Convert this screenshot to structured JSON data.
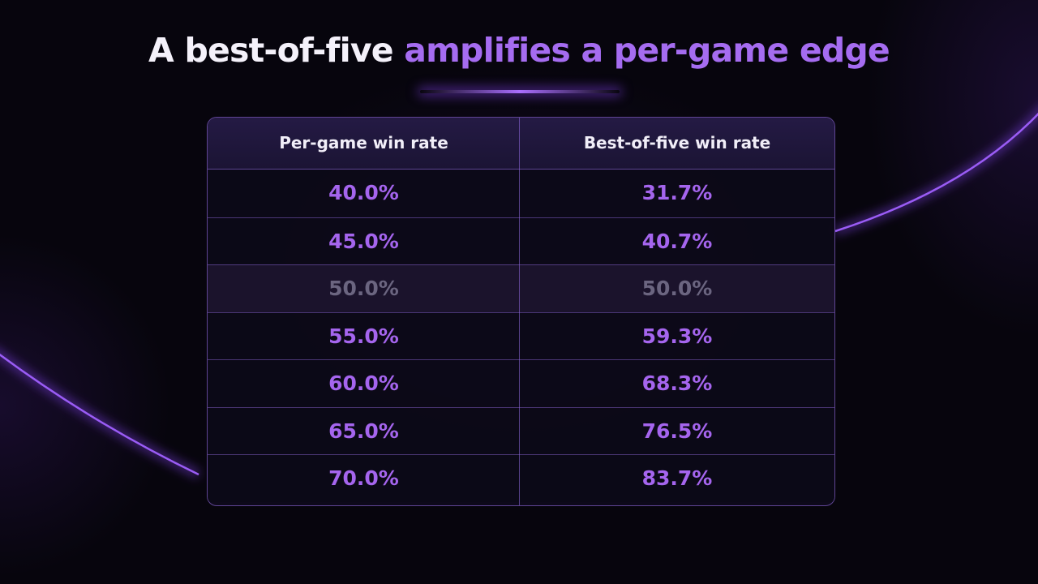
{
  "title": {
    "part1": "A best-of-five",
    "part2": "amplifies a per-game edge"
  },
  "colors": {
    "accent": "#a565ee",
    "title_white": "#f4f1fa",
    "neutral_text": "#6b6580",
    "background": "#07050d"
  },
  "table": {
    "headers": [
      "Per-game win rate",
      "Best-of-five win rate"
    ],
    "rows": [
      {
        "per_game": "40.0%",
        "best_of_five": "31.7%"
      },
      {
        "per_game": "45.0%",
        "best_of_five": "40.7%"
      },
      {
        "per_game": "50.0%",
        "best_of_five": "50.0%"
      },
      {
        "per_game": "55.0%",
        "best_of_five": "59.3%"
      },
      {
        "per_game": "60.0%",
        "best_of_five": "68.3%"
      },
      {
        "per_game": "65.0%",
        "best_of_five": "76.5%"
      },
      {
        "per_game": "70.0%",
        "best_of_five": "83.7%"
      }
    ]
  }
}
